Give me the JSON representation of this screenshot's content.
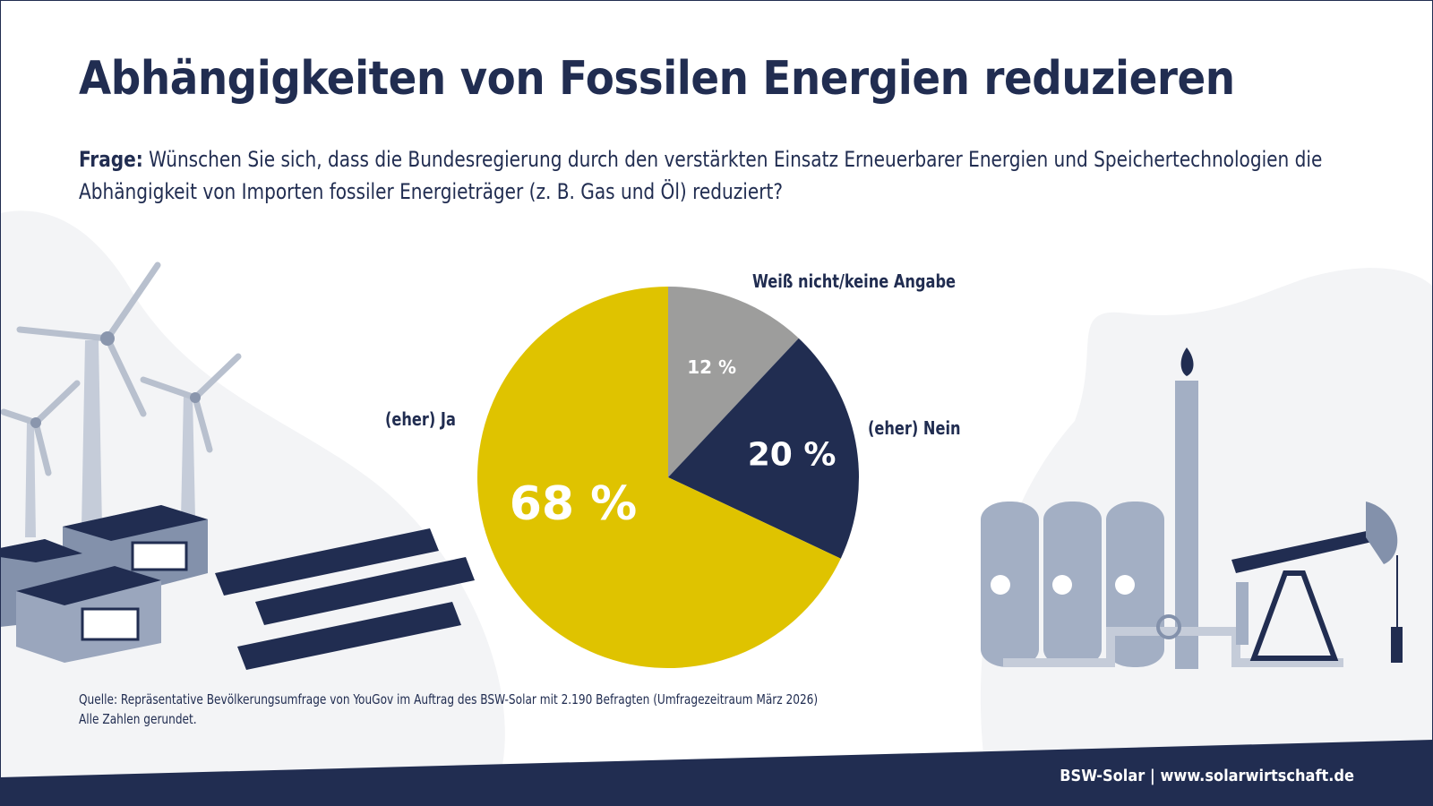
{
  "title": "Abhängigkeiten von Fossilen Energien reduzieren",
  "question": {
    "label": "Frage:",
    "text": " Wünschen Sie sich, dass die Bundesregierung durch den verstärkten Einsatz Erneuerbarer Energien und Speichertechnologien die Abhängigkeit von Importen fossiler Energieträger (z. B. Gas und Öl) reduziert?"
  },
  "chart_data": {
    "type": "pie",
    "start": "top, clockwise",
    "slices": [
      {
        "label": "Weiß nicht/keine Angabe",
        "value": 12,
        "value_label": "12 %",
        "color": "#9d9d9c"
      },
      {
        "label": "(eher) Nein",
        "value": 20,
        "value_label": "20 %",
        "color": "#212d51"
      },
      {
        "label": "(eher) Ja",
        "value": 68,
        "value_label": "68 %",
        "color": "#dfc300"
      }
    ]
  },
  "source": {
    "line1": "Quelle: Repräsentative Bevölkerungsumfrage von YouGov im Auftrag des BSW-Solar mit 2.190 Befragten (Umfragezeitraum März 2026)",
    "line2": "Alle Zahlen gerundet."
  },
  "footer": "BSW-Solar | www.solarwirtschaft.de",
  "colors": {
    "navy": "#212d51",
    "yellow": "#dfc300",
    "gray": "#9d9d9c",
    "background_shape": "#f3f4f6",
    "illustration": "#a3afc4"
  },
  "illustrations": [
    "wind-turbines",
    "battery-storage-containers",
    "solar-panels",
    "gas-tanks",
    "refinery-chimney-flame",
    "oil-pumpjack",
    "pipeline"
  ]
}
